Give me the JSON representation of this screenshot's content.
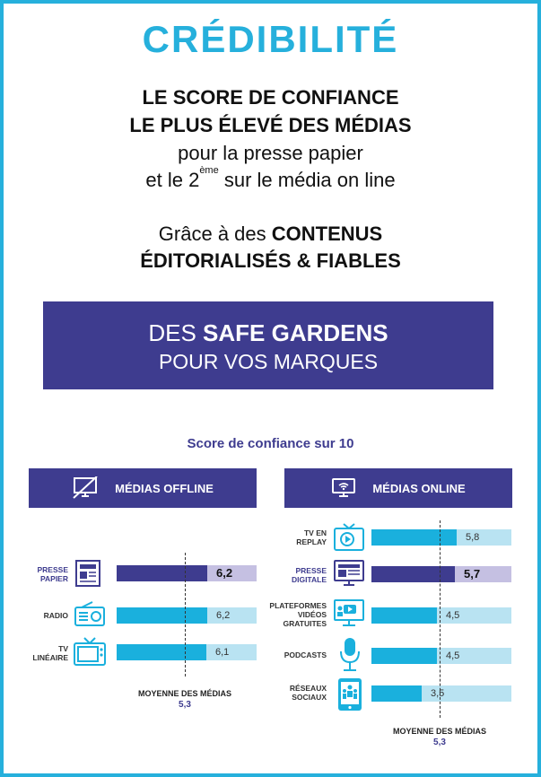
{
  "title": "CRÉDIBILITÉ",
  "intro": {
    "line1": "LE SCORE DE CONFIANCE",
    "line2": "LE PLUS ÉLEVÉ DES MÉDIAS",
    "line3": "pour la presse papier",
    "line4_prefix": "et le 2",
    "line4_sup": "ème",
    "line4_suffix": " sur le média on line",
    "line5_prefix": "Grâce à des ",
    "line5_bold": "CONTENUS",
    "line6": "ÉDITORIALISÉS & FIABLES"
  },
  "banner": {
    "prefix": "DES ",
    "bold": "SAFE GARDENS",
    "line2": "POUR VOS MARQUES"
  },
  "colors": {
    "accent": "#26b0dc",
    "navy": "#3e3c8f",
    "bar": "#1ab0dd",
    "bar_bg": "#b9e3f2",
    "bar_bg_hl": "#c5c0e2"
  },
  "chart_data": [
    {
      "type": "bar",
      "title": "Score de confiance sur 10",
      "header": "MÉDIAS OFFLINE",
      "header_icon": "tv-crossed-icon",
      "categories": [
        "PRESSE PAPIER",
        "RADIO",
        "TV LINÉAIRE"
      ],
      "labels": [
        "PRESSE\nPAPIER",
        "RADIO",
        "TV\nLINÉAIRE"
      ],
      "icons": [
        "newspaper-icon",
        "radio-icon",
        "tv-icon"
      ],
      "values": [
        6.2,
        6.2,
        6.1
      ],
      "value_labels": [
        "6,2",
        "6,2",
        "6,1"
      ],
      "highlight": [
        true,
        false,
        false
      ],
      "xlim": [
        0,
        10
      ],
      "average": {
        "label": "MOYENNE DES MÉDIAS",
        "value": 5.3,
        "value_label": "5,3"
      }
    },
    {
      "type": "bar",
      "title": "Score de confiance sur 10",
      "header": "MÉDIAS ONLINE",
      "header_icon": "monitor-wifi-icon",
      "categories": [
        "TV EN REPLAY",
        "PRESSE DIGITALE",
        "PLATEFORMES VIDÉOS GRATUITES",
        "PODCASTS",
        "RÉSEAUX SOCIAUX"
      ],
      "labels": [
        "TV EN\nREPLAY",
        "PRESSE\nDIGITALE",
        "PLATEFORMES\nVIDÉOS\nGRATUITES",
        "PODCASTS",
        "RÉSEAUX\nSOCIAUX"
      ],
      "icons": [
        "replay-icon",
        "digital-press-icon",
        "video-platform-icon",
        "microphone-icon",
        "social-network-icon"
      ],
      "values": [
        5.8,
        5.7,
        4.5,
        4.5,
        3.5
      ],
      "value_labels": [
        "5,8",
        "5,7",
        "4,5",
        "4,5",
        "3,5"
      ],
      "highlight": [
        false,
        true,
        false,
        false,
        false
      ],
      "xlim": [
        0,
        10
      ],
      "average": {
        "label": "MOYENNE DES MÉDIAS",
        "value": 5.3,
        "value_label": "5,3"
      }
    }
  ]
}
